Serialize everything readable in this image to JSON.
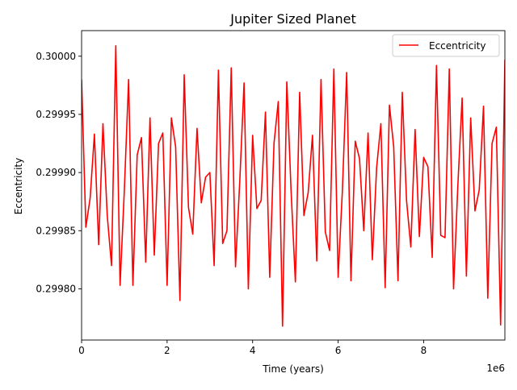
{
  "chart_data": {
    "type": "line",
    "title": "Jupiter Sized Planet",
    "xlabel": "Time (years)",
    "ylabel": "Eccentricity",
    "x_offset_label": "1e6",
    "xlim": [
      0,
      9.9
    ],
    "ylim": [
      0.299756,
      0.300022
    ],
    "grid": false,
    "legend": "top-right",
    "x_ticks": [
      {
        "value": 0,
        "label": "0"
      },
      {
        "value": 2,
        "label": "2"
      },
      {
        "value": 4,
        "label": "4"
      },
      {
        "value": 6,
        "label": "6"
      },
      {
        "value": 8,
        "label": "8"
      }
    ],
    "y_ticks": [
      {
        "value": 0.2998,
        "label": "0.29980"
      },
      {
        "value": 0.29985,
        "label": "0.29985"
      },
      {
        "value": 0.2999,
        "label": "0.29990"
      },
      {
        "value": 0.29995,
        "label": "0.29995"
      },
      {
        "value": 0.3,
        "label": "0.30000"
      }
    ],
    "series": [
      {
        "name": "Eccentricity",
        "color": "#ff0000",
        "x": [
          0,
          0.1,
          0.2,
          0.3,
          0.4,
          0.5,
          0.6,
          0.7,
          0.8,
          0.9,
          1.0,
          1.1,
          1.2,
          1.3,
          1.4,
          1.5,
          1.6,
          1.7,
          1.8,
          1.9,
          2.0,
          2.1,
          2.2,
          2.3,
          2.4,
          2.5,
          2.6,
          2.7,
          2.8,
          2.9,
          3.0,
          3.1,
          3.2,
          3.3,
          3.4,
          3.5,
          3.6,
          3.7,
          3.8,
          3.9,
          4.0,
          4.1,
          4.2,
          4.3,
          4.4,
          4.5,
          4.6,
          4.7,
          4.8,
          4.9,
          5.0,
          5.1,
          5.2,
          5.3,
          5.4,
          5.5,
          5.6,
          5.7,
          5.8,
          5.9,
          6.0,
          6.1,
          6.2,
          6.3,
          6.4,
          6.5,
          6.6,
          6.7,
          6.8,
          6.9,
          7.0,
          7.1,
          7.2,
          7.3,
          7.4,
          7.5,
          7.6,
          7.7,
          7.8,
          7.9,
          8.0,
          8.1,
          8.2,
          8.3,
          8.4,
          8.5,
          8.6,
          8.7,
          8.8,
          8.9,
          9.0,
          9.1,
          9.2,
          9.3,
          9.4,
          9.5,
          9.6,
          9.7,
          9.8,
          9.9
        ],
        "y": [
          0.29998,
          0.299853,
          0.299878,
          0.299933,
          0.299838,
          0.299942,
          0.299863,
          0.29982,
          0.300009,
          0.299803,
          0.299885,
          0.29998,
          0.299803,
          0.299915,
          0.29993,
          0.299823,
          0.299947,
          0.299829,
          0.299925,
          0.299934,
          0.299803,
          0.299947,
          0.299922,
          0.29979,
          0.299984,
          0.29987,
          0.299847,
          0.299938,
          0.299874,
          0.299896,
          0.2999,
          0.29982,
          0.299988,
          0.299839,
          0.29985,
          0.29999,
          0.299819,
          0.299893,
          0.299977,
          0.2998,
          0.299932,
          0.299869,
          0.299876,
          0.299952,
          0.29981,
          0.299925,
          0.299961,
          0.299768,
          0.299978,
          0.299884,
          0.299806,
          0.299969,
          0.299863,
          0.299883,
          0.299932,
          0.299824,
          0.29998,
          0.299849,
          0.299833,
          0.299989,
          0.29981,
          0.299885,
          0.299986,
          0.299807,
          0.299927,
          0.299912,
          0.29985,
          0.299934,
          0.299825,
          0.299904,
          0.299942,
          0.299801,
          0.299958,
          0.299922,
          0.299807,
          0.299969,
          0.299876,
          0.299836,
          0.299937,
          0.299845,
          0.299913,
          0.299905,
          0.299827,
          0.299992,
          0.299846,
          0.299844,
          0.299989,
          0.2998,
          0.299889,
          0.299964,
          0.299811,
          0.299947,
          0.299867,
          0.299885,
          0.299957,
          0.299792,
          0.299925,
          0.299939,
          0.299769,
          0.299997
        ]
      }
    ]
  }
}
